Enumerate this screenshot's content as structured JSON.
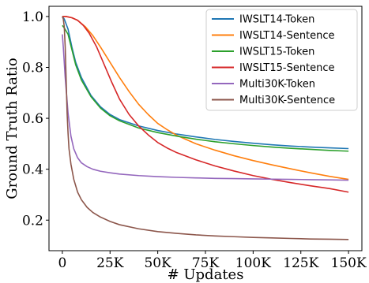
{
  "chart_data": {
    "type": "line",
    "title": "",
    "xlabel": "# Updates",
    "ylabel": "Ground Truth Ratio",
    "xlim": [
      -7000,
      157000
    ],
    "ylim": [
      0.08,
      1.04
    ],
    "xticks": [
      0,
      25000,
      50000,
      75000,
      100000,
      125000,
      150000
    ],
    "xtick_labels": [
      "0",
      "25K",
      "50K",
      "75K",
      "100K",
      "125K",
      "150K"
    ],
    "yticks": [
      0.2,
      0.4,
      0.6,
      0.8,
      1.0
    ],
    "ytick_labels": [
      "0.2",
      "0.4",
      "0.6",
      "0.8",
      "1.0"
    ],
    "grid": false,
    "legend_position": "top-right",
    "series": [
      {
        "name": "IWSLT14-Token",
        "color": "#1f77b4",
        "points": [
          [
            0,
            1.0
          ],
          [
            1000,
            0.99
          ],
          [
            3000,
            0.95
          ],
          [
            5000,
            0.88
          ],
          [
            7000,
            0.82
          ],
          [
            10000,
            0.76
          ],
          [
            15000,
            0.69
          ],
          [
            20000,
            0.645
          ],
          [
            25000,
            0.615
          ],
          [
            30000,
            0.595
          ],
          [
            40000,
            0.57
          ],
          [
            50000,
            0.552
          ],
          [
            60000,
            0.538
          ],
          [
            70000,
            0.527
          ],
          [
            80000,
            0.517
          ],
          [
            90000,
            0.509
          ],
          [
            100000,
            0.502
          ],
          [
            110000,
            0.496
          ],
          [
            120000,
            0.491
          ],
          [
            130000,
            0.487
          ],
          [
            140000,
            0.484
          ],
          [
            150000,
            0.481
          ]
        ]
      },
      {
        "name": "IWSLT14-Sentence",
        "color": "#ff7f0e",
        "points": [
          [
            0,
            1.0
          ],
          [
            2000,
            1.0
          ],
          [
            5000,
            0.995
          ],
          [
            8000,
            0.985
          ],
          [
            12000,
            0.96
          ],
          [
            16000,
            0.925
          ],
          [
            20000,
            0.88
          ],
          [
            25000,
            0.82
          ],
          [
            30000,
            0.76
          ],
          [
            35000,
            0.705
          ],
          [
            40000,
            0.655
          ],
          [
            45000,
            0.615
          ],
          [
            50000,
            0.58
          ],
          [
            55000,
            0.555
          ],
          [
            60000,
            0.533
          ],
          [
            70000,
            0.5
          ],
          [
            80000,
            0.475
          ],
          [
            90000,
            0.453
          ],
          [
            100000,
            0.434
          ],
          [
            110000,
            0.417
          ],
          [
            120000,
            0.401
          ],
          [
            130000,
            0.386
          ],
          [
            140000,
            0.372
          ],
          [
            150000,
            0.36
          ]
        ]
      },
      {
        "name": "IWSLT15-Token",
        "color": "#2ca02c",
        "points": [
          [
            0,
            0.965
          ],
          [
            1000,
            0.955
          ],
          [
            3000,
            0.93
          ],
          [
            5000,
            0.87
          ],
          [
            7000,
            0.81
          ],
          [
            10000,
            0.75
          ],
          [
            15000,
            0.685
          ],
          [
            20000,
            0.64
          ],
          [
            25000,
            0.61
          ],
          [
            30000,
            0.59
          ],
          [
            40000,
            0.562
          ],
          [
            50000,
            0.544
          ],
          [
            60000,
            0.53
          ],
          [
            70000,
            0.518
          ],
          [
            80000,
            0.508
          ],
          [
            90000,
            0.5
          ],
          [
            100000,
            0.493
          ],
          [
            110000,
            0.487
          ],
          [
            120000,
            0.482
          ],
          [
            130000,
            0.478
          ],
          [
            140000,
            0.474
          ],
          [
            150000,
            0.471
          ]
        ]
      },
      {
        "name": "IWSLT15-Sentence",
        "color": "#d62728",
        "points": [
          [
            0,
            1.0
          ],
          [
            2000,
            1.0
          ],
          [
            5000,
            0.995
          ],
          [
            8000,
            0.985
          ],
          [
            11000,
            0.965
          ],
          [
            14000,
            0.935
          ],
          [
            18000,
            0.88
          ],
          [
            22000,
            0.81
          ],
          [
            26000,
            0.74
          ],
          [
            30000,
            0.675
          ],
          [
            35000,
            0.615
          ],
          [
            40000,
            0.57
          ],
          [
            45000,
            0.535
          ],
          [
            50000,
            0.505
          ],
          [
            55000,
            0.483
          ],
          [
            60000,
            0.465
          ],
          [
            70000,
            0.437
          ],
          [
            80000,
            0.413
          ],
          [
            90000,
            0.393
          ],
          [
            100000,
            0.375
          ],
          [
            110000,
            0.36
          ],
          [
            120000,
            0.347
          ],
          [
            130000,
            0.335
          ],
          [
            140000,
            0.324
          ],
          [
            150000,
            0.31
          ]
        ]
      },
      {
        "name": "Multi30K-Token",
        "color": "#9467bd",
        "points": [
          [
            0,
            0.93
          ],
          [
            500,
            0.88
          ],
          [
            1500,
            0.76
          ],
          [
            3000,
            0.62
          ],
          [
            4500,
            0.53
          ],
          [
            6000,
            0.48
          ],
          [
            8000,
            0.445
          ],
          [
            10000,
            0.425
          ],
          [
            13000,
            0.41
          ],
          [
            16000,
            0.4
          ],
          [
            20000,
            0.392
          ],
          [
            25000,
            0.386
          ],
          [
            30000,
            0.381
          ],
          [
            40000,
            0.375
          ],
          [
            50000,
            0.371
          ],
          [
            60000,
            0.368
          ],
          [
            70000,
            0.366
          ],
          [
            80000,
            0.364
          ],
          [
            90000,
            0.363
          ],
          [
            100000,
            0.362
          ],
          [
            110000,
            0.361
          ],
          [
            120000,
            0.36
          ],
          [
            130000,
            0.359
          ],
          [
            140000,
            0.358
          ],
          [
            150000,
            0.357
          ]
        ]
      },
      {
        "name": "Multi30K-Sentence",
        "color": "#8c564b",
        "points": [
          [
            0,
            1.0
          ],
          [
            500,
            0.99
          ],
          [
            1000,
            0.96
          ],
          [
            1500,
            0.88
          ],
          [
            2000,
            0.75
          ],
          [
            2500,
            0.62
          ],
          [
            3000,
            0.54
          ],
          [
            3500,
            0.48
          ],
          [
            4500,
            0.42
          ],
          [
            6000,
            0.36
          ],
          [
            8000,
            0.31
          ],
          [
            10000,
            0.28
          ],
          [
            13000,
            0.25
          ],
          [
            16000,
            0.23
          ],
          [
            20000,
            0.212
          ],
          [
            25000,
            0.195
          ],
          [
            30000,
            0.182
          ],
          [
            40000,
            0.166
          ],
          [
            50000,
            0.155
          ],
          [
            60000,
            0.148
          ],
          [
            70000,
            0.142
          ],
          [
            80000,
            0.138
          ],
          [
            90000,
            0.135
          ],
          [
            100000,
            0.132
          ],
          [
            110000,
            0.13
          ],
          [
            120000,
            0.128
          ],
          [
            130000,
            0.126
          ],
          [
            140000,
            0.125
          ],
          [
            150000,
            0.124
          ]
        ]
      }
    ]
  }
}
